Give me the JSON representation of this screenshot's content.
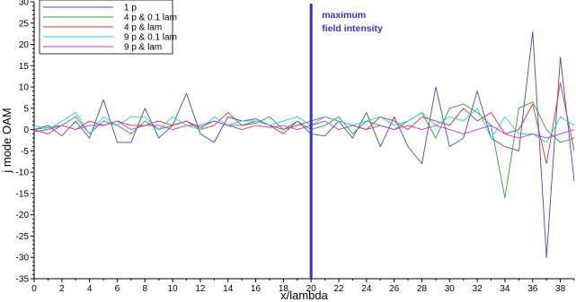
{
  "chart_data": {
    "type": "line",
    "xlabel": "x/lambda",
    "ylabel": "j mode OAM",
    "xlim": [
      0,
      39
    ],
    "ylim": [
      -35,
      30
    ],
    "xticks": [
      0,
      2,
      4,
      6,
      8,
      10,
      12,
      14,
      16,
      18,
      20,
      22,
      24,
      26,
      28,
      30,
      32,
      34,
      36,
      38
    ],
    "yticks": [
      -35,
      -30,
      -25,
      -20,
      -15,
      -10,
      -5,
      0,
      5,
      10,
      15,
      20,
      25,
      30
    ],
    "grid": false,
    "legend_position": "top-left",
    "colors": {
      "axes": "#000000",
      "marker_line": "#3333cc",
      "annotation": "#3333cc"
    },
    "annotation": {
      "x": 20,
      "line1": "maximum",
      "line2": "field intensity"
    },
    "series": [
      {
        "name": "1 p",
        "color": "#4444e0",
        "x": [
          0,
          1,
          2,
          3,
          4,
          5,
          6,
          7,
          8,
          9,
          10,
          11,
          12,
          13,
          14,
          15,
          16,
          17,
          18,
          19,
          20,
          21,
          22,
          23,
          24,
          25,
          26,
          27,
          28,
          29,
          30,
          31,
          32,
          33,
          34,
          35,
          36,
          37,
          38,
          39
        ],
        "y": [
          0,
          1,
          -1.5,
          2,
          -2,
          7,
          -3,
          -3,
          5,
          -2,
          1,
          8.5,
          -1,
          -3,
          3,
          2,
          2.5,
          1,
          -1,
          2,
          -1,
          -1.5,
          2,
          -2,
          4,
          -4,
          3,
          -4,
          -8,
          10,
          -4,
          -2,
          9,
          -2,
          -4,
          -5,
          23,
          -30,
          17,
          -12
        ]
      },
      {
        "name": "4 p & 0.1 lam",
        "color": "#2ea02e",
        "x": [
          0,
          1,
          2,
          3,
          4,
          5,
          6,
          7,
          8,
          9,
          10,
          11,
          12,
          13,
          14,
          15,
          16,
          17,
          18,
          19,
          20,
          21,
          22,
          23,
          24,
          25,
          26,
          27,
          28,
          29,
          30,
          31,
          32,
          33,
          34,
          35,
          36,
          37,
          38,
          39
        ],
        "y": [
          0,
          0.5,
          1,
          3,
          -1,
          2,
          1,
          -1,
          2,
          0,
          1,
          2,
          0.5,
          2,
          1,
          1,
          1.5,
          3,
          0,
          2,
          0,
          1,
          3,
          -1,
          2,
          1,
          0,
          2,
          4,
          -2,
          5,
          6,
          4,
          1,
          -16,
          5,
          6.5,
          0,
          -3,
          -2
        ]
      },
      {
        "name": "4 p & lam",
        "color": "#e03030",
        "x": [
          0,
          1,
          2,
          3,
          4,
          5,
          6,
          7,
          8,
          9,
          10,
          11,
          12,
          13,
          14,
          15,
          16,
          17,
          18,
          19,
          20,
          21,
          22,
          23,
          24,
          25,
          26,
          27,
          28,
          29,
          30,
          31,
          32,
          33,
          34,
          35,
          36,
          37,
          38,
          39
        ],
        "y": [
          0,
          -1,
          1,
          0,
          2,
          1,
          2,
          1,
          1,
          2,
          1,
          2,
          0,
          1,
          4,
          1,
          2,
          1,
          0,
          1,
          2,
          3,
          2,
          1,
          0,
          3,
          2,
          0,
          3,
          2,
          1,
          5,
          2,
          4,
          -1,
          0,
          6,
          -8,
          11,
          -5
        ]
      },
      {
        "name": "9 p & 0.1 lam",
        "color": "#20d0d0",
        "x": [
          0,
          1,
          2,
          3,
          4,
          5,
          6,
          7,
          8,
          9,
          10,
          11,
          12,
          13,
          14,
          15,
          16,
          17,
          18,
          19,
          20,
          21,
          22,
          23,
          24,
          25,
          26,
          27,
          28,
          29,
          30,
          31,
          32,
          33,
          34,
          35,
          36,
          37,
          38,
          39
        ],
        "y": [
          1,
          0,
          2,
          4,
          -1,
          3,
          1,
          3,
          3,
          0,
          3,
          1,
          0,
          3,
          1,
          2,
          2,
          1,
          2,
          3,
          1,
          3,
          2,
          1,
          2,
          3,
          1,
          2,
          4,
          1,
          3,
          2,
          5,
          -2,
          3,
          -1,
          -1,
          -3,
          3,
          1
        ]
      },
      {
        "name": "9 p & lam",
        "color": "#cc33cc",
        "x": [
          0,
          1,
          2,
          3,
          4,
          5,
          6,
          7,
          8,
          9,
          10,
          11,
          12,
          13,
          14,
          15,
          16,
          17,
          18,
          19,
          20,
          21,
          22,
          23,
          24,
          25,
          26,
          27,
          28,
          29,
          30,
          31,
          32,
          33,
          34,
          35,
          36,
          37,
          38,
          39
        ],
        "y": [
          -0.5,
          0,
          1,
          0,
          1,
          1,
          2,
          0,
          1,
          1,
          0,
          1,
          1,
          2,
          1,
          0,
          1,
          0.5,
          1,
          0,
          1,
          2,
          0,
          1,
          0,
          1,
          0,
          1,
          0,
          1,
          0,
          -1,
          0,
          1,
          -1,
          -2,
          -1,
          -2,
          -1,
          0
        ]
      }
    ]
  }
}
